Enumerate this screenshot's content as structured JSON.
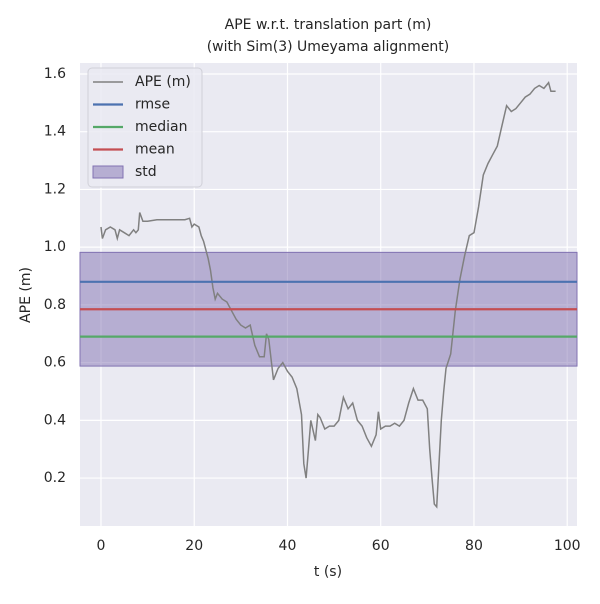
{
  "chart_data": {
    "type": "line",
    "title": [
      "APE w.r.t. translation part (m)",
      "(with Sim(3) Umeyama alignment)"
    ],
    "xlabel": "t (s)",
    "ylabel": "APE (m)",
    "x": [
      0,
      0.3,
      1,
      2,
      3,
      3.5,
      4,
      5,
      6,
      7,
      7.5,
      8,
      8.3,
      9,
      10,
      12,
      15,
      18,
      19,
      19.5,
      20,
      21,
      21.5,
      22,
      23,
      23.5,
      24,
      24.5,
      25,
      26,
      27,
      28,
      29,
      30,
      31,
      32,
      33,
      34,
      35,
      35.5,
      36,
      37,
      38,
      39,
      40,
      41,
      42,
      43,
      43.5,
      44,
      44.5,
      45,
      46,
      46.5,
      47,
      48,
      49,
      50,
      51,
      52,
      53,
      54,
      55,
      56,
      57,
      58,
      59,
      59.5,
      60,
      61,
      62,
      63,
      64,
      65,
      66,
      67,
      68,
      69,
      70,
      70.5,
      71,
      71.5,
      72,
      72.5,
      73,
      73.5,
      74,
      75,
      76,
      77,
      78,
      79,
      80,
      81,
      82,
      83,
      84,
      85,
      86,
      87,
      88,
      89,
      90,
      91,
      92,
      93,
      94,
      95,
      96,
      96.5,
      97.5
    ],
    "series": [
      {
        "name": "APE (m)",
        "color": "#808080",
        "values": [
          1.07,
          1.03,
          1.06,
          1.07,
          1.06,
          1.03,
          1.06,
          1.05,
          1.04,
          1.06,
          1.05,
          1.06,
          1.12,
          1.09,
          1.09,
          1.095,
          1.095,
          1.095,
          1.1,
          1.07,
          1.08,
          1.07,
          1.04,
          1.02,
          0.96,
          0.92,
          0.86,
          0.82,
          0.84,
          0.82,
          0.81,
          0.78,
          0.75,
          0.73,
          0.72,
          0.73,
          0.66,
          0.62,
          0.62,
          0.7,
          0.68,
          0.54,
          0.58,
          0.6,
          0.57,
          0.55,
          0.51,
          0.42,
          0.25,
          0.2,
          0.3,
          0.4,
          0.33,
          0.42,
          0.41,
          0.37,
          0.38,
          0.38,
          0.4,
          0.48,
          0.44,
          0.46,
          0.4,
          0.38,
          0.34,
          0.31,
          0.35,
          0.43,
          0.37,
          0.38,
          0.38,
          0.39,
          0.38,
          0.4,
          0.46,
          0.51,
          0.47,
          0.47,
          0.44,
          0.3,
          0.2,
          0.11,
          0.1,
          0.25,
          0.4,
          0.5,
          0.58,
          0.63,
          0.78,
          0.89,
          0.97,
          1.04,
          1.05,
          1.14,
          1.25,
          1.29,
          1.32,
          1.35,
          1.42,
          1.49,
          1.47,
          1.48,
          1.5,
          1.52,
          1.53,
          1.55,
          1.56,
          1.55,
          1.57,
          1.54,
          1.54
        ]
      }
    ],
    "hlines": [
      {
        "name": "rmse",
        "color": "#4c72b0",
        "value": 0.88
      },
      {
        "name": "median",
        "color": "#55a868",
        "value": 0.69
      },
      {
        "name": "mean",
        "color": "#c44e52",
        "value": 0.785
      }
    ],
    "band": {
      "name": "std",
      "color": "#8172b2",
      "value": 0.197
    },
    "xlim": [
      -4.5,
      102.1
    ],
    "ylim": [
      0.034,
      1.638
    ],
    "xticks": [
      0,
      20,
      40,
      60,
      80,
      100
    ],
    "yticks": [
      0.2,
      0.4,
      0.6,
      0.8,
      {
        "value": 1.0,
        "label": "1.0"
      },
      1.2,
      1.4,
      1.6
    ],
    "grid": true,
    "legend": "upper left"
  }
}
